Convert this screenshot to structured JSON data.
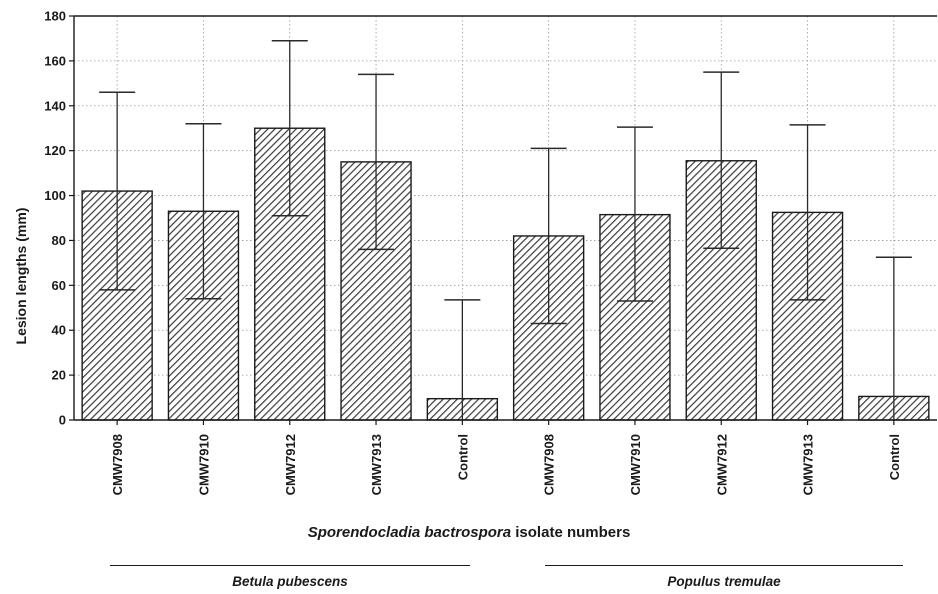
{
  "chart_data": {
    "type": "bar",
    "ylabel": "Lesion lengths (mm)",
    "xlabel_species": "Sporendocladia bactrospora",
    "xlabel_rest": " isolate numbers",
    "ylim": [
      0,
      180
    ],
    "yticks": [
      0,
      20,
      40,
      60,
      80,
      100,
      120,
      140,
      160,
      180
    ],
    "grid": true,
    "bar_fill": "hatched",
    "categories": [
      "CMW7908",
      "CMW7910",
      "CMW7912",
      "CMW7913",
      "Control",
      "CMW7908",
      "CMW7910",
      "CMW7912",
      "CMW7913",
      "Control"
    ],
    "values": [
      102,
      93,
      130,
      115,
      9.5,
      82,
      91.5,
      115.5,
      92.5,
      10.5
    ],
    "error_low": [
      58,
      54,
      91,
      76,
      0,
      43,
      53,
      76.5,
      53.5,
      0
    ],
    "error_high": [
      146,
      132,
      169,
      154,
      53.5,
      121,
      130.5,
      155,
      131.5,
      72.5
    ],
    "groups": [
      {
        "label": "Betula pubescens",
        "categories_from": 0,
        "categories_to": 4
      },
      {
        "label": "Populus tremulae",
        "categories_from": 5,
        "categories_to": 9
      }
    ]
  }
}
